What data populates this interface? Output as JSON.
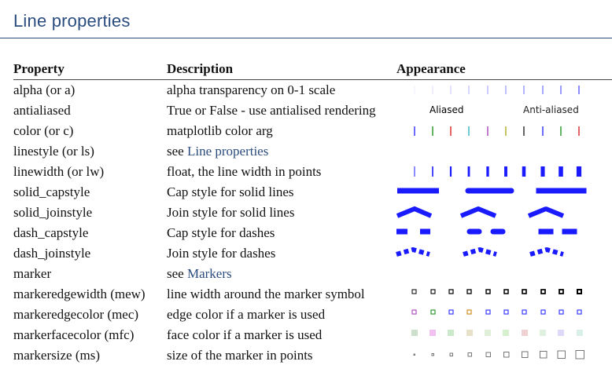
{
  "title": "Line properties",
  "headers": {
    "property": "Property",
    "description": "Description",
    "appearance": "Appearance"
  },
  "appearance_labels": {
    "aliased": "Aliased",
    "anti_aliased": "Anti-aliased"
  },
  "rows": [
    {
      "property": "alpha (or a)",
      "description": "alpha transparency on 0-1 scale"
    },
    {
      "property": "antialiased",
      "description": "True or False - use antialised rendering"
    },
    {
      "property": "color (or c)",
      "description": "matplotlib color arg"
    },
    {
      "property": "linestyle (or ls)",
      "description_prefix": "see ",
      "description_link": "Line properties"
    },
    {
      "property": "linewidth (or lw)",
      "description": "float, the line width in points"
    },
    {
      "property": "solid_capstyle",
      "description": "Cap style for solid lines"
    },
    {
      "property": "solid_joinstyle",
      "description": "Join style for solid lines"
    },
    {
      "property": "dash_capstyle",
      "description": "Cap style for dashes"
    },
    {
      "property": "dash_joinstyle",
      "description": "Join style for dashes"
    },
    {
      "property": "marker",
      "description_prefix": "see ",
      "description_link": "Markers"
    },
    {
      "property": "markeredgewidth (mew)",
      "description": "line width around the marker symbol"
    },
    {
      "property": "markeredgecolor (mec)",
      "description": "edge color if a marker is used"
    },
    {
      "property": "markerfacecolor (mfc)",
      "description": "face color if a marker is used"
    },
    {
      "property": "markersize (ms)",
      "description": "size of the marker in points"
    }
  ],
  "colors": {
    "title": "#2b4c7e",
    "link": "#2b4c7e",
    "line_blue": "#1a1aff",
    "color_row": [
      "#3b3bff",
      "#2e9a2e",
      "#e03030",
      "#40b8c8",
      "#b050c0",
      "#b0b030",
      "#333333",
      "#3b3bff",
      "#2e9a2e",
      "#e03030"
    ],
    "mec_row": [
      "#b050c0",
      "#2e9a2e",
      "#3b3bff",
      "#d09020",
      "#3b3bff",
      "#3b3bff",
      "#3b3bff",
      "#3b3bff",
      "#3b3bff",
      "#3b3bff"
    ],
    "mfc_row": [
      "#cce0cc",
      "#f0c0f0",
      "#cce8cc",
      "#e8e0c8",
      "#e0f0d8",
      "#d8f0d0",
      "#f0d0d0",
      "#e0f0e0",
      "#e0d8f8",
      "#d8f0e8"
    ]
  }
}
